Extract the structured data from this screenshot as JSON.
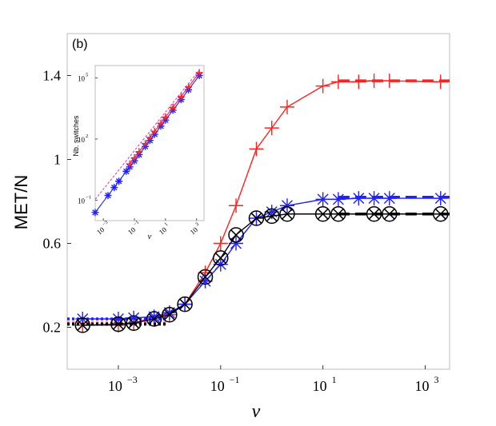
{
  "chart_data": {
    "type": "line",
    "panel_label": "(b)",
    "xlabel": "ν",
    "ylabel": "MET/N",
    "xscale": "log",
    "xlim": [
      0.0001,
      3000
    ],
    "ylim": [
      0,
      1.6
    ],
    "xticks": [
      {
        "value": 0.001,
        "base": "10",
        "exp": "−3"
      },
      {
        "value": 0.1,
        "base": "10",
        "exp": "−1"
      },
      {
        "value": 10,
        "base": "10",
        "exp": "1"
      },
      {
        "value": 1000,
        "base": "10",
        "exp": "3"
      }
    ],
    "yticks": [
      {
        "value": 0.2,
        "label": "0.2"
      },
      {
        "value": 0.6,
        "label": "0.6"
      },
      {
        "value": 1.0,
        "label": "1"
      },
      {
        "value": 1.4,
        "label": "1.4"
      }
    ],
    "series": [
      {
        "name": "red",
        "color": "#ff2020",
        "marker": "plus",
        "x": [
          0.0002,
          0.001,
          0.002,
          0.005,
          0.01,
          0.02,
          0.05,
          0.1,
          0.2,
          0.5,
          1,
          2,
          10,
          20,
          50,
          100,
          200,
          2000
        ],
        "y": [
          0.21,
          0.21,
          0.22,
          0.25,
          0.26,
          0.31,
          0.46,
          0.6,
          0.78,
          1.05,
          1.15,
          1.25,
          1.35,
          1.37,
          1.37,
          1.375,
          1.375,
          1.37
        ],
        "asymptote_low": 0.22,
        "asymptote_high": 1.375
      },
      {
        "name": "blue",
        "color": "#2020ff",
        "marker": "star",
        "x": [
          0.0002,
          0.001,
          0.002,
          0.005,
          0.01,
          0.02,
          0.05,
          0.1,
          0.2,
          0.5,
          1,
          2,
          10,
          20,
          50,
          100,
          200,
          2000
        ],
        "y": [
          0.24,
          0.24,
          0.245,
          0.25,
          0.27,
          0.31,
          0.42,
          0.5,
          0.6,
          0.72,
          0.75,
          0.78,
          0.81,
          0.81,
          0.815,
          0.815,
          0.815,
          0.815
        ],
        "asymptote_low": 0.24,
        "asymptote_high": 0.82
      },
      {
        "name": "black",
        "color": "#000000",
        "marker": "circle-x",
        "x": [
          0.0002,
          0.001,
          0.002,
          0.005,
          0.01,
          0.02,
          0.05,
          0.1,
          0.2,
          0.5,
          1,
          2,
          10,
          20,
          100,
          200,
          2000
        ],
        "y": [
          0.21,
          0.215,
          0.22,
          0.24,
          0.26,
          0.31,
          0.44,
          0.53,
          0.64,
          0.72,
          0.73,
          0.74,
          0.74,
          0.74,
          0.74,
          0.74,
          0.74
        ],
        "asymptote_low": 0.215,
        "asymptote_high": 0.74
      }
    ],
    "inset": {
      "ylabel": "Nb. switches",
      "xlabel": "ν",
      "xscale": "log",
      "yscale": "log",
      "xlim": [
        0.0003,
        3000
      ],
      "ylim": [
        0.01,
        400000
      ],
      "xticks": [
        {
          "value": 0.001,
          "base": "10",
          "exp": "−3"
        },
        {
          "value": 0.1,
          "base": "10",
          "exp": "−1"
        },
        {
          "value": 10,
          "base": "10",
          "exp": "1"
        },
        {
          "value": 1000,
          "base": "10",
          "exp": "3"
        }
      ],
      "yticks": [
        {
          "value": 0.1,
          "base": "10",
          "exp": "−1"
        },
        {
          "value": 100,
          "base": "10",
          "exp": "2"
        },
        {
          "value": 100000,
          "base": "10",
          "exp": "5"
        }
      ],
      "series": [
        {
          "name": "blue",
          "color": "#2020ff",
          "marker": "star",
          "x": [
            0.0003,
            0.002,
            0.005,
            0.01,
            0.03,
            0.05,
            0.1,
            0.2,
            0.5,
            1,
            2,
            5,
            10,
            30,
            100,
            300,
            1500
          ],
          "y": [
            0.025,
            0.17,
            0.42,
            0.85,
            2.6,
            4.3,
            8.5,
            17,
            43,
            85,
            170,
            430,
            850,
            2600,
            8500,
            26000,
            130000
          ]
        },
        {
          "name": "red",
          "color": "#ff2020",
          "marker": "plus",
          "x": [
            0.05,
            0.1,
            0.2,
            0.5,
            1,
            2,
            5,
            10,
            30,
            100,
            300,
            1500
          ],
          "y": [
            6,
            12,
            24,
            60,
            120,
            240,
            600,
            1200,
            3600,
            12000,
            36000,
            180000
          ]
        },
        {
          "name": "magenta-dashed",
          "color": "#cc33cc",
          "marker": "none",
          "dashed": true,
          "x": [
            0.0003,
            1500
          ],
          "y": [
            0.11,
            240000
          ]
        }
      ]
    }
  }
}
